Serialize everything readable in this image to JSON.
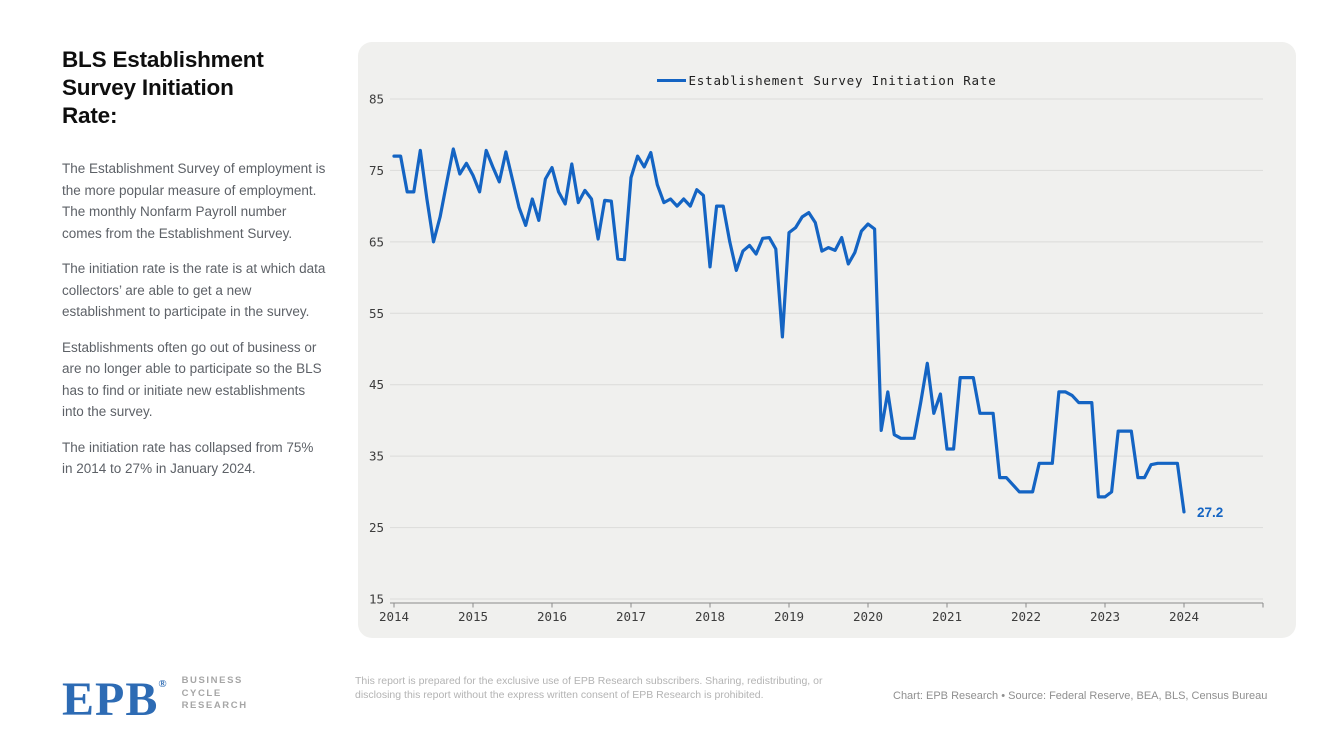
{
  "sidebar": {
    "title": "BLS Establishment\nSurvey Initiation\nRate:",
    "paragraphs": [
      "The Establishment Survey of employment is the more popular measure of employment. The monthly Nonfarm Payroll number comes from the Establishment Survey.",
      "The initiation rate is the rate is  at which data collectors’ are able to get a new establishment to participate in the survey.",
      "Establishments often go out of business or are no longer able to participate so the BLS has to find or initiate new establishments into the survey.",
      "The initiation rate has collapsed from 75% in 2014 to 27% in January 2024."
    ]
  },
  "chart_data": {
    "type": "line",
    "title": "",
    "xlabel": "",
    "ylabel": "",
    "legend_position": "top-center",
    "grid": true,
    "line_color": "#1464c3",
    "ylim": [
      15,
      87
    ],
    "xlim": [
      2014,
      2025
    ],
    "yticks": [
      85,
      75,
      65,
      55,
      45,
      35,
      25,
      15
    ],
    "xticks": [
      2014,
      2015,
      2016,
      2017,
      2018,
      2019,
      2020,
      2021,
      2022,
      2023,
      2024
    ],
    "frequency": "monthly",
    "x_start": "2014-01",
    "x_end": "2024-01",
    "end_label": "27.2",
    "series": [
      {
        "name": "Establishement Survey Initiation Rate",
        "values": [
          77,
          77,
          72,
          72,
          77.8,
          71,
          65,
          68.5,
          73.3,
          78,
          74.5,
          76,
          74.3,
          72,
          77.8,
          75.5,
          73.4,
          77.6,
          73.7,
          69.8,
          67.3,
          71,
          68,
          73.8,
          75.4,
          72,
          70.3,
          75.9,
          70.5,
          72.2,
          71,
          65.4,
          70.8,
          70.7,
          62.6,
          62.5,
          74,
          77,
          75.5,
          77.5,
          73,
          70.5,
          71,
          70,
          71,
          70,
          72.3,
          71.5,
          61.5,
          70,
          70,
          65,
          61,
          63.7,
          64.5,
          63.3,
          65.5,
          65.6,
          64,
          51.7,
          66.3,
          67,
          68.5,
          69.1,
          67.7,
          63.7,
          64.2,
          63.8,
          65.6,
          61.9,
          63.5,
          66.5,
          67.5,
          66.8,
          38.6,
          44,
          38,
          37.5,
          37.5,
          37.5,
          42.5,
          48,
          41,
          43.7,
          36,
          36,
          46,
          46,
          46,
          41,
          41,
          41,
          32,
          32,
          31,
          30,
          30,
          30,
          34,
          34,
          34,
          44,
          44,
          43.5,
          42.5,
          42.5,
          42.5,
          29.3,
          29.3,
          30,
          38.5,
          38.5,
          38.5,
          32,
          32,
          33.8,
          34,
          34,
          34,
          34,
          27.2
        ]
      }
    ]
  },
  "footer": {
    "logo_text": "EPB",
    "logo_reg": "®",
    "logo_color": "#2d6bb4",
    "logo_subtitle_lines": [
      "BUSINESS",
      "CYCLE",
      "RESEARCH"
    ],
    "disclaimer": "This report is prepared for the exclusive use of EPB Research subscribers. Sharing, redistributing, or disclosing this report without the express written consent of EPB Research is prohibited.",
    "credit": "Chart: EPB Research  •  Source: Federal Reserve, BEA, BLS, Census Bureau"
  }
}
